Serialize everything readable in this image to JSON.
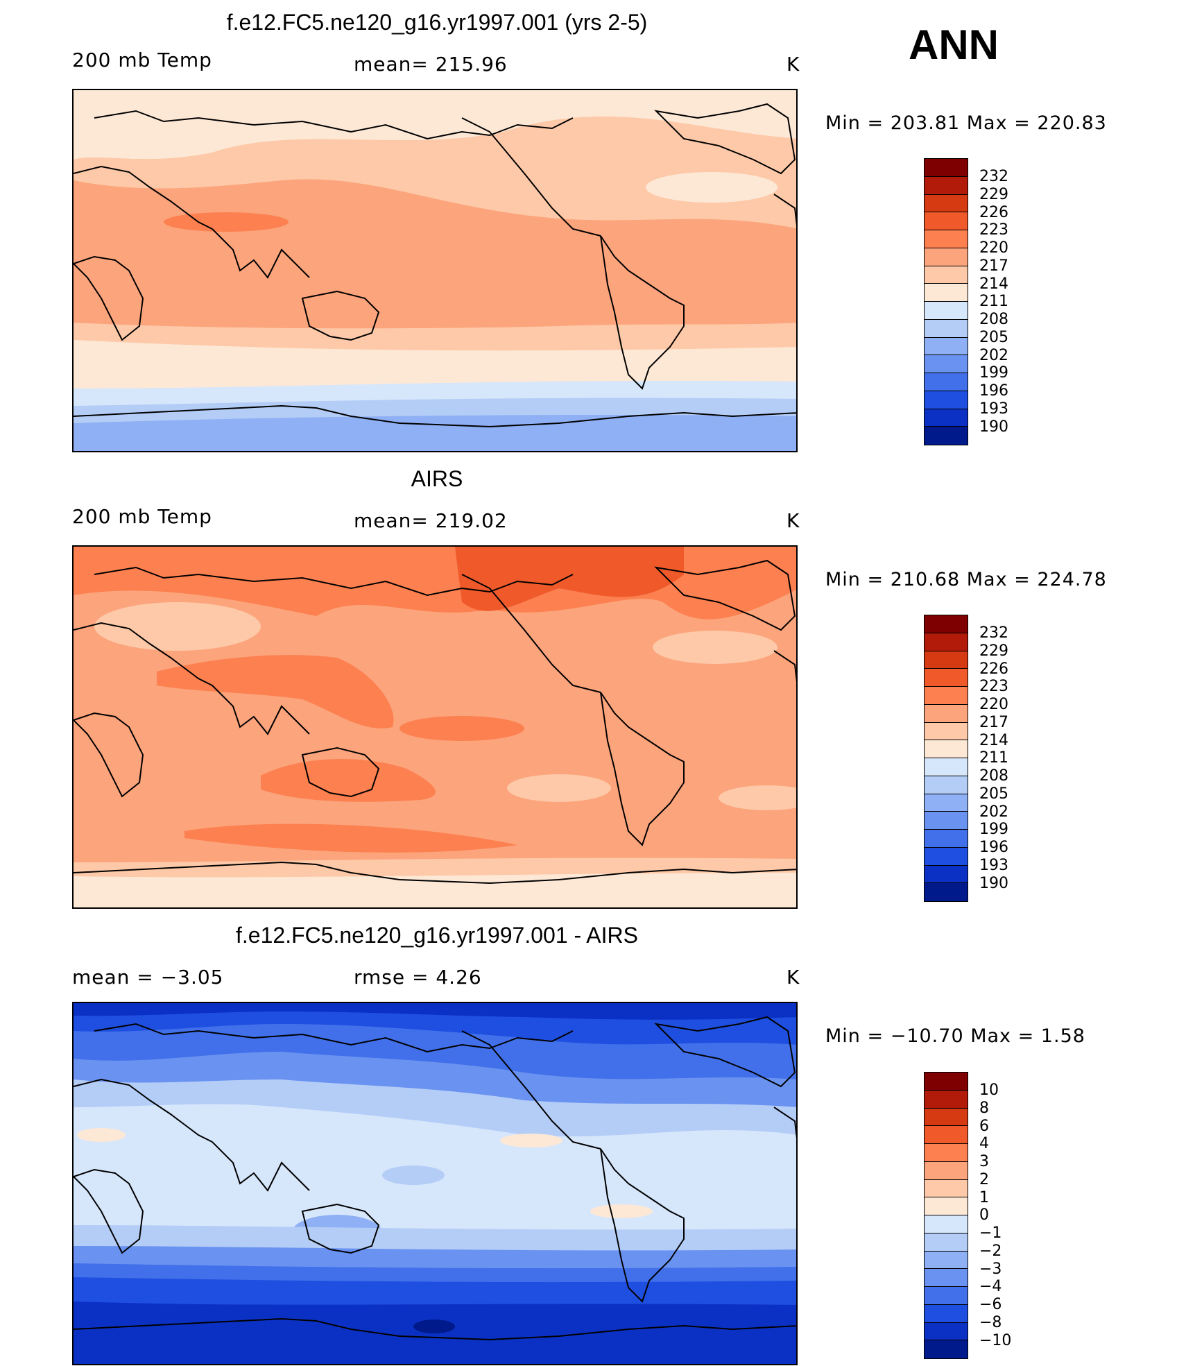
{
  "season": "ANN",
  "panels": [
    {
      "title": "f.e12.FC5.ne120_g16.yr1997.001 (yrs 2-5)",
      "left_text": "200 mb Temp",
      "center_text": "mean=  215.96",
      "units": "K",
      "minmax": "Min  =  203.81  Max  =  220.83",
      "colorbar": {
        "colors": [
          "#7f0000",
          "#b21a0a",
          "#d63a12",
          "#f05a2a",
          "#fc8050",
          "#fca47c",
          "#fdc9a8",
          "#fde8d6",
          "#d6e6fb",
          "#b4cdf7",
          "#8fb0f4",
          "#6a92f0",
          "#4170ea",
          "#1f4fe0",
          "#0b31c4",
          "#001a8c"
        ],
        "labels": [
          "232",
          "229",
          "226",
          "223",
          "220",
          "217",
          "214",
          "211",
          "208",
          "205",
          "202",
          "199",
          "196",
          "193",
          "190"
        ]
      }
    },
    {
      "title": "AIRS",
      "left_text": "200 mb Temp",
      "center_text": "mean=  219.02",
      "units": "K",
      "minmax": "Min  =  210.68  Max  =  224.78",
      "colorbar": {
        "colors": [
          "#7f0000",
          "#b21a0a",
          "#d63a12",
          "#f05a2a",
          "#fc8050",
          "#fca47c",
          "#fdc9a8",
          "#fde8d6",
          "#d6e6fb",
          "#b4cdf7",
          "#8fb0f4",
          "#6a92f0",
          "#4170ea",
          "#1f4fe0",
          "#0b31c4",
          "#001a8c"
        ],
        "labels": [
          "232",
          "229",
          "226",
          "223",
          "220",
          "217",
          "214",
          "211",
          "208",
          "205",
          "202",
          "199",
          "196",
          "193",
          "190"
        ]
      }
    },
    {
      "title": "f.e12.FC5.ne120_g16.yr1997.001 - AIRS",
      "left_text": "mean  =    −3.05",
      "center_text": "rmse  =     4.26",
      "units": "K",
      "minmax": "Min  =  −10.70  Max  =     1.58",
      "colorbar": {
        "colors": [
          "#7f0000",
          "#b21a0a",
          "#d63a12",
          "#f05a2a",
          "#fc8050",
          "#fca47c",
          "#fdc9a8",
          "#fde8d6",
          "#d6e6fb",
          "#b4cdf7",
          "#8fb0f4",
          "#6a92f0",
          "#4170ea",
          "#1f4fe0",
          "#0b31c4",
          "#001a8c"
        ],
        "labels": [
          "10",
          "8",
          "6",
          "4",
          "3",
          "2",
          "1",
          "0",
          "−1",
          "−2",
          "−3",
          "−4",
          "−6",
          "−8",
          "−10"
        ]
      }
    }
  ],
  "map_fills": {
    "p1": {
      "base": "#fca47c",
      "pole_n": "#fde8d6",
      "mid_n": "#fdc9a8",
      "mid_s": "#fde8d6",
      "s1": "#d6e6fb",
      "s2": "#b4cdf7",
      "s3": "#8fb0f4",
      "hot": "#fc8050"
    },
    "p2": {
      "base": "#fca47c",
      "pole_n": "#fc8050",
      "hot": "#f05a2a",
      "cool": "#fdc9a8",
      "s1": "#fde8d6"
    },
    "p3": {
      "base": "#d6e6fb",
      "n1": "#b4cdf7",
      "n2": "#6a92f0",
      "n3": "#4170ea",
      "n4": "#1f4fe0",
      "s1": "#8fb0f4",
      "s2": "#4170ea",
      "s3": "#1f4fe0",
      "s4": "#0b31c4",
      "warm": "#fde8d6"
    }
  }
}
